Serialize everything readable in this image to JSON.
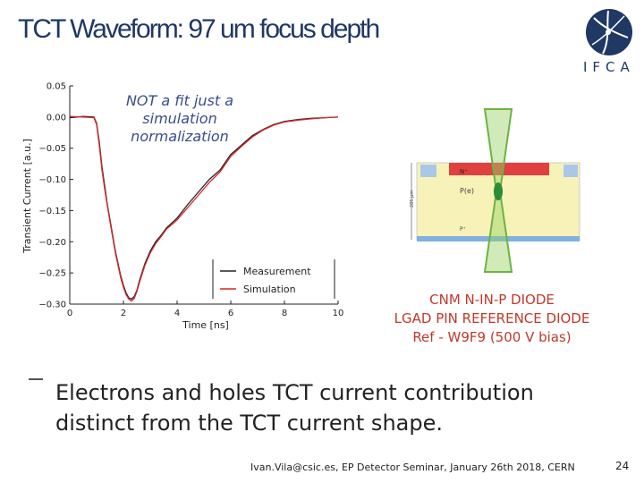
{
  "slide": {
    "title": "TCT Waveform: 97 um focus depth",
    "logo_text": "IFCA",
    "annotation": [
      "NOT a fit just a",
      "simulation",
      "normalization"
    ],
    "diode_caption": [
      "CNM N-IN-P DIODE",
      "LGAD PIN REFERENCE DIODE",
      "Ref - W9F9  (500 V bias)"
    ],
    "diode_labels": {
      "n_plus": "N⁺",
      "p_e": "P(e)",
      "p_plus": "P⁺",
      "depth": "285 μm"
    },
    "bullet": "Electrons and holes TCT current contribution distinct from the TCT current shape.",
    "footer": "Ivan.Vila@csic.es, EP Detector Seminar, January 26th 2018, CERN",
    "page_number": "24"
  },
  "chart_data": {
    "type": "line",
    "xlabel": "Time [ns]",
    "ylabel": "Transient Current [a.u.]",
    "xlim": [
      0,
      10
    ],
    "ylim": [
      -0.3,
      0.05
    ],
    "xticks": [
      "0",
      "2",
      "4",
      "6",
      "8",
      "10"
    ],
    "yticks": [
      "0.05",
      "0.00",
      "−0.05",
      "−0.10",
      "−0.15",
      "−0.20",
      "−0.25",
      "−0.30"
    ],
    "grid": false,
    "legend_position": "bottom-right",
    "series": [
      {
        "name": "Measurement",
        "color": "#222222",
        "x": [
          0,
          0.5,
          0.9,
          1.0,
          1.1,
          1.2,
          1.3,
          1.4,
          1.5,
          1.6,
          1.7,
          1.8,
          1.9,
          2.0,
          2.1,
          2.2,
          2.3,
          2.4,
          2.5,
          2.6,
          2.8,
          3.0,
          3.2,
          3.4,
          3.6,
          4.0,
          4.4,
          4.8,
          5.2,
          5.6,
          6.0,
          6.4,
          6.8,
          7.2,
          7.6,
          8.0,
          8.5,
          9.0,
          9.5,
          10.0
        ],
        "y": [
          -0.001,
          0.001,
          0.0,
          -0.01,
          -0.04,
          -0.08,
          -0.11,
          -0.14,
          -0.165,
          -0.19,
          -0.215,
          -0.235,
          -0.255,
          -0.27,
          -0.282,
          -0.29,
          -0.292,
          -0.288,
          -0.278,
          -0.262,
          -0.235,
          -0.215,
          -0.2,
          -0.19,
          -0.178,
          -0.162,
          -0.14,
          -0.12,
          -0.1,
          -0.085,
          -0.06,
          -0.045,
          -0.03,
          -0.02,
          -0.012,
          -0.007,
          -0.004,
          -0.002,
          -0.001,
          0.0
        ]
      },
      {
        "name": "Simulation",
        "color": "#d62728",
        "x": [
          0,
          0.5,
          0.9,
          1.0,
          1.1,
          1.2,
          1.3,
          1.4,
          1.5,
          1.6,
          1.7,
          1.8,
          1.9,
          2.0,
          2.1,
          2.2,
          2.3,
          2.4,
          2.5,
          2.6,
          2.8,
          3.0,
          3.2,
          3.4,
          3.6,
          4.0,
          4.4,
          4.8,
          5.2,
          5.6,
          6.0,
          6.4,
          6.8,
          7.2,
          7.6,
          8.0,
          8.5,
          9.0,
          9.5,
          10.0
        ],
        "y": [
          0.001,
          0.0,
          -0.001,
          -0.012,
          -0.045,
          -0.085,
          -0.115,
          -0.142,
          -0.168,
          -0.193,
          -0.218,
          -0.238,
          -0.258,
          -0.273,
          -0.285,
          -0.292,
          -0.295,
          -0.291,
          -0.28,
          -0.265,
          -0.238,
          -0.218,
          -0.203,
          -0.192,
          -0.18,
          -0.165,
          -0.145,
          -0.125,
          -0.105,
          -0.088,
          -0.063,
          -0.047,
          -0.032,
          -0.021,
          -0.013,
          -0.008,
          -0.005,
          -0.003,
          -0.001,
          0.0
        ]
      }
    ]
  }
}
